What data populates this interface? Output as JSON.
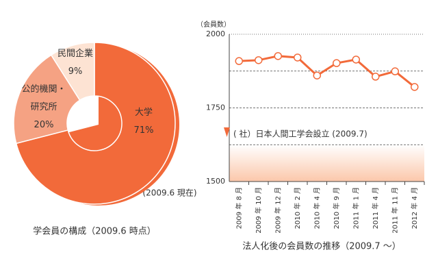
{
  "charts": [
    {
      "type": "donut",
      "title": "学会員の構成（2009.6 時点）",
      "annotation": "(2009.6 現在)",
      "categories": [
        "大学",
        "公的機関・研究所",
        "民間企業"
      ],
      "values": [
        71,
        20,
        9
      ],
      "value_labels": [
        "71%",
        "20%",
        "9%"
      ],
      "colors": [
        "#f26a3a",
        "#f5a283",
        "#fde3d3"
      ]
    },
    {
      "type": "line",
      "title": "法人化後の会員数の推移（2009.7 〜）",
      "y_label": "（会員数）",
      "annotation": "( 社）日本人間工学会設立 (2009.7)",
      "categories": [
        "2009 年 8 月",
        "2009 年 10 月",
        "2009 年 12 月",
        "2010 年 2 月",
        "2010 年 4 月",
        "2010 年 9 月",
        "2011 年 1 月",
        "2011 年 4 月",
        "2011 年 11 月",
        "2012 年 4 月"
      ],
      "series": [
        {
          "name": "会員数",
          "color": "#f26a3a",
          "values": [
            1909,
            1912,
            1926,
            1921,
            1860,
            1902,
            1914,
            1856,
            1874,
            1821
          ]
        }
      ],
      "ylim": [
        1500,
        2000
      ],
      "yticks": [
        1500,
        1750,
        2000
      ],
      "minor_yticks": [
        1625,
        1875
      ],
      "grid": true
    }
  ]
}
